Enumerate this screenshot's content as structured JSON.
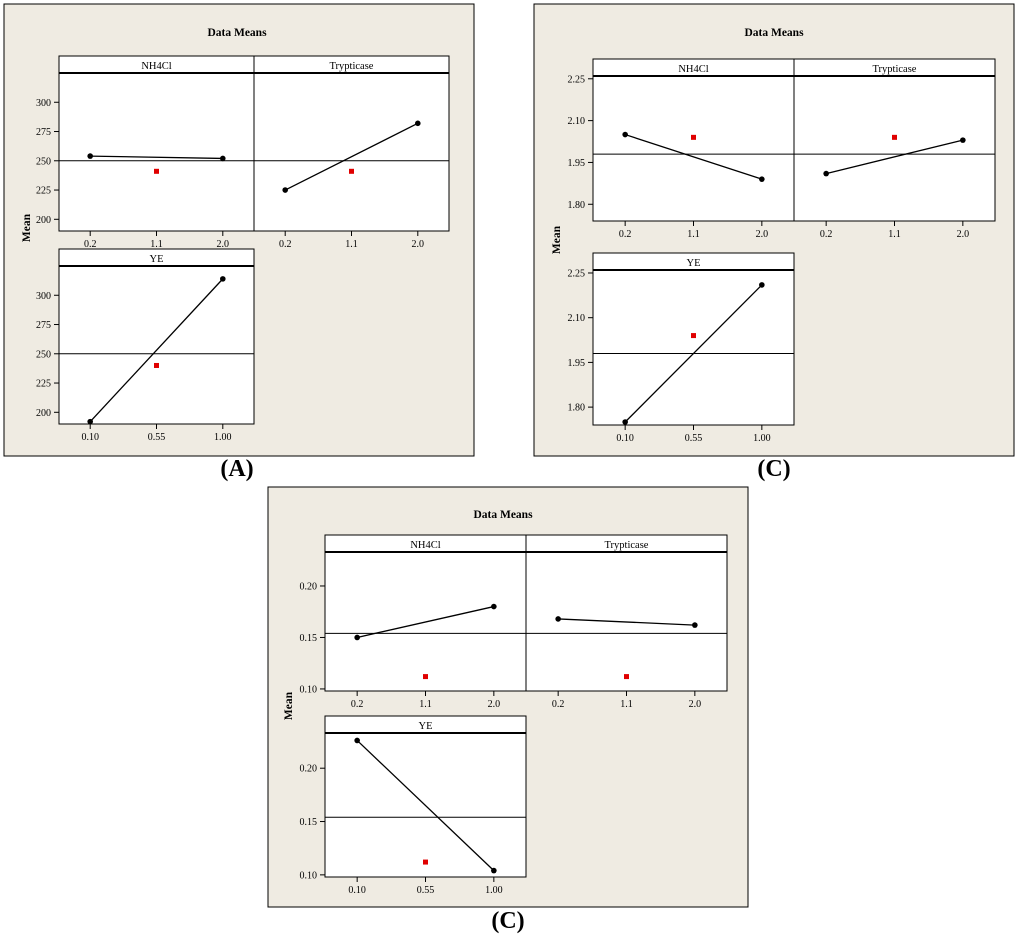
{
  "colors": {
    "panel_background": "#efebe2",
    "plot_background": "#ffffff",
    "line": "#000000",
    "center_point": "#e00000"
  },
  "figures": [
    {
      "label": "(A)"
    },
    {
      "label": "(C)"
    },
    {
      "label": "(C)"
    }
  ],
  "chart_data": [
    {
      "type": "line",
      "title": "Data Means",
      "ylabel": "Mean",
      "grid": false,
      "panels": [
        {
          "header": "NH4Cl",
          "x_ticks": [
            "0.2",
            "1.1",
            "2.0"
          ],
          "values": [
            254,
            252
          ],
          "center_point": 241,
          "reference_line": 250,
          "ylim": [
            190,
            325
          ],
          "y_ticks": [
            "200",
            "225",
            "250",
            "275",
            "300"
          ]
        },
        {
          "header": "Trypticase",
          "x_ticks": [
            "0.2",
            "1.1",
            "2.0"
          ],
          "values": [
            225,
            282
          ],
          "center_point": 241,
          "reference_line": 250,
          "ylim": [
            190,
            325
          ],
          "y_ticks": []
        },
        {
          "header": "YE",
          "x_ticks": [
            "0.10",
            "0.55",
            "1.00"
          ],
          "values": [
            192,
            314
          ],
          "center_point": 240,
          "reference_line": 250,
          "ylim": [
            190,
            325
          ],
          "y_ticks": [
            "200",
            "225",
            "250",
            "275",
            "300"
          ]
        }
      ]
    },
    {
      "type": "line",
      "title": "Data Means",
      "ylabel": "Mean",
      "grid": false,
      "panels": [
        {
          "header": "NH4Cl",
          "x_ticks": [
            "0.2",
            "1.1",
            "2.0"
          ],
          "values": [
            2.05,
            1.89
          ],
          "center_point": 2.04,
          "reference_line": 1.98,
          "ylim": [
            1.74,
            2.26
          ],
          "y_ticks": [
            "1.80",
            "1.95",
            "2.10",
            "2.25"
          ]
        },
        {
          "header": "Trypticase",
          "x_ticks": [
            "0.2",
            "1.1",
            "2.0"
          ],
          "values": [
            1.91,
            2.03
          ],
          "center_point": 2.04,
          "reference_line": 1.98,
          "ylim": [
            1.74,
            2.26
          ],
          "y_ticks": []
        },
        {
          "header": "YE",
          "x_ticks": [
            "0.10",
            "0.55",
            "1.00"
          ],
          "values": [
            1.75,
            2.21
          ],
          "center_point": 2.04,
          "reference_line": 1.98,
          "ylim": [
            1.74,
            2.26
          ],
          "y_ticks": [
            "1.80",
            "1.95",
            "2.10",
            "2.25"
          ]
        }
      ]
    },
    {
      "type": "line",
      "title": "Data Means",
      "ylabel": "Mean",
      "grid": false,
      "panels": [
        {
          "header": "NH4Cl",
          "x_ticks": [
            "0.2",
            "1.1",
            "2.0"
          ],
          "values": [
            0.15,
            0.18
          ],
          "center_point": 0.112,
          "reference_line": 0.154,
          "ylim": [
            0.098,
            0.233
          ],
          "y_ticks": [
            "0.10",
            "0.15",
            "0.20"
          ]
        },
        {
          "header": "Trypticase",
          "x_ticks": [
            "0.2",
            "1.1",
            "2.0"
          ],
          "values": [
            0.168,
            0.162
          ],
          "center_point": 0.112,
          "reference_line": 0.154,
          "ylim": [
            0.098,
            0.233
          ],
          "y_ticks": []
        },
        {
          "header": "YE",
          "x_ticks": [
            "0.10",
            "0.55",
            "1.00"
          ],
          "values": [
            0.226,
            0.104
          ],
          "center_point": 0.112,
          "reference_line": 0.154,
          "ylim": [
            0.098,
            0.233
          ],
          "y_ticks": [
            "0.10",
            "0.15",
            "0.20"
          ]
        }
      ]
    }
  ]
}
